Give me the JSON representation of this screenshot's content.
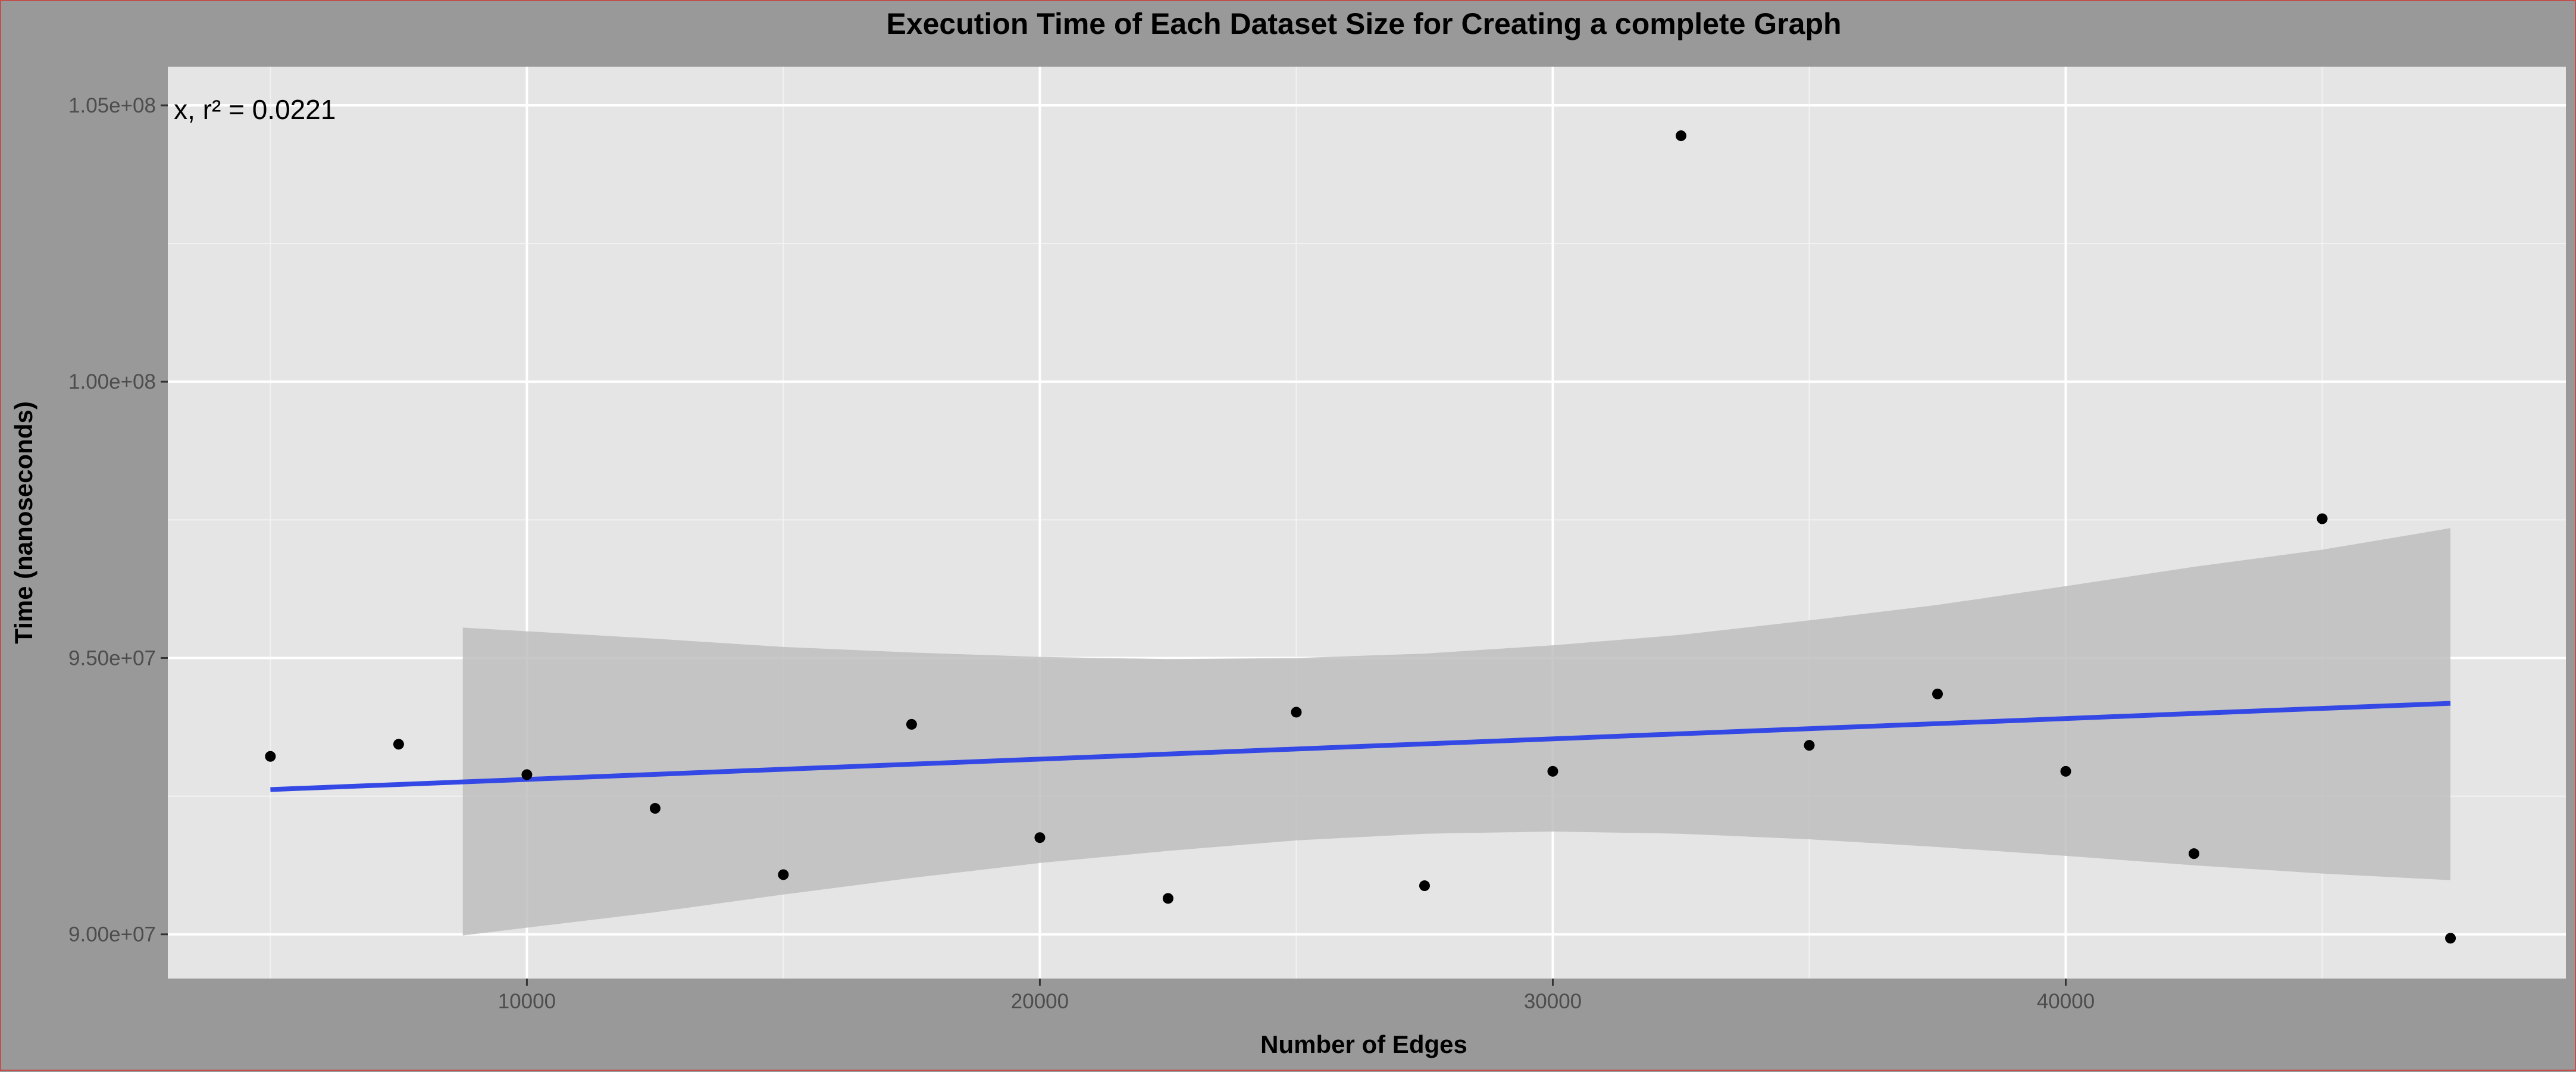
{
  "chart_data": {
    "type": "scatter",
    "title": "Execution Time of Each Dataset Size for Creating a complete Graph",
    "xlabel": "Number of Edges",
    "ylabel": "Time (nanoseconds)",
    "xlim": [
      3000,
      49750
    ],
    "ylim": [
      89200000,
      105700000
    ],
    "x_ticks": [
      10000,
      20000,
      30000,
      40000
    ],
    "x_tick_labels": [
      "10000",
      "20000",
      "30000",
      "40000"
    ],
    "y_ticks": [
      90000000,
      95000000,
      100000000,
      105000000
    ],
    "y_tick_labels": [
      "9.00e+07",
      "9.50e+07",
      "1.00e+08",
      "1.05e+08"
    ],
    "grid": true,
    "annotation": "· x,  r² = 0.0221",
    "points": [
      {
        "x": 5000,
        "y": 93220000
      },
      {
        "x": 7500,
        "y": 93440000
      },
      {
        "x": 10000,
        "y": 92890000
      },
      {
        "x": 12500,
        "y": 92280000
      },
      {
        "x": 15000,
        "y": 91080000
      },
      {
        "x": 17500,
        "y": 93800000
      },
      {
        "x": 20000,
        "y": 91750000
      },
      {
        "x": 22500,
        "y": 90650000
      },
      {
        "x": 25000,
        "y": 94020000
      },
      {
        "x": 27500,
        "y": 90880000
      },
      {
        "x": 30000,
        "y": 92950000
      },
      {
        "x": 32500,
        "y": 104450000
      },
      {
        "x": 35000,
        "y": 93420000
      },
      {
        "x": 37500,
        "y": 94350000
      },
      {
        "x": 40000,
        "y": 92950000
      },
      {
        "x": 42500,
        "y": 91460000
      },
      {
        "x": 45000,
        "y": 97520000
      },
      {
        "x": 47500,
        "y": 89930000
      }
    ],
    "fit_line": {
      "x": [
        5000,
        47500
      ],
      "y": [
        92620000,
        94180000
      ],
      "color": "#3348e5"
    },
    "ci_band": {
      "x": [
        8750,
        12500,
        15000,
        17500,
        20000,
        22500,
        25000,
        27500,
        30000,
        32500,
        35000,
        37500,
        40000,
        42500,
        45000,
        47500
      ],
      "upper": [
        95550000,
        95350000,
        95200000,
        95100000,
        95020000,
        94980000,
        95000000,
        95080000,
        95230000,
        95420000,
        95680000,
        95960000,
        96300000,
        96650000,
        96960000,
        97350000
      ],
      "lower": [
        89980000,
        90400000,
        90720000,
        91020000,
        91290000,
        91510000,
        91700000,
        91820000,
        91860000,
        91820000,
        91720000,
        91580000,
        91420000,
        91250000,
        91100000,
        90980000
      ],
      "color": "#bebebe"
    },
    "colors": {
      "panel_bg": "#e5e5e5",
      "outer_bg": "#999999",
      "grid": "#ffffff",
      "point": "#000000"
    }
  }
}
